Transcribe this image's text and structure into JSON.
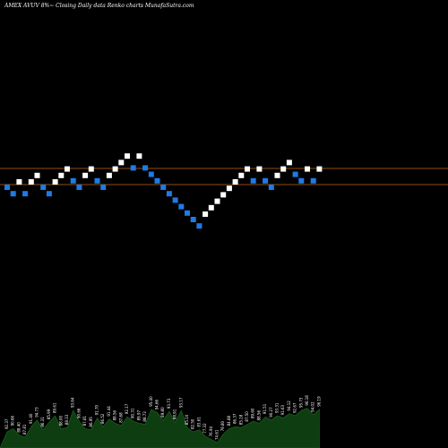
{
  "title": "AMEX  AVUV 8%~  Closing Daily data  Renko  charts MunafaSutra.com",
  "colors": {
    "background": "#000000",
    "up_brick": "#ffffff",
    "down_brick": "#1e7be6",
    "reference_line": "#c06a10",
    "volume_fill": "#0f3d12",
    "volume_edge": "#1a6b1e"
  },
  "chart_data": {
    "type": "renko",
    "title": "AMEX  AVUV 8%~  Closing Daily data  Renko  charts MunafaSutra.com",
    "grid": false,
    "reference_lines": [
      {
        "level": 2.5
      },
      {
        "level": 0
      }
    ],
    "bricks": [
      {
        "dir": "down",
        "level": 0
      },
      {
        "dir": "down",
        "level": -1
      },
      {
        "dir": "up",
        "level": 0
      },
      {
        "dir": "down",
        "level": -1
      },
      {
        "dir": "up",
        "level": 0
      },
      {
        "dir": "up",
        "level": 1
      },
      {
        "dir": "down",
        "level": 0
      },
      {
        "dir": "down",
        "level": -1
      },
      {
        "dir": "up",
        "level": 0
      },
      {
        "dir": "up",
        "level": 1
      },
      {
        "dir": "up",
        "level": 2
      },
      {
        "dir": "down",
        "level": 1
      },
      {
        "dir": "down",
        "level": 0
      },
      {
        "dir": "up",
        "level": 1
      },
      {
        "dir": "up",
        "level": 2
      },
      {
        "dir": "down",
        "level": 1
      },
      {
        "dir": "down",
        "level": 0
      },
      {
        "dir": "up",
        "level": 1
      },
      {
        "dir": "up",
        "level": 2
      },
      {
        "dir": "up",
        "level": 3
      },
      {
        "dir": "up",
        "level": 4
      },
      {
        "dir": "down",
        "level": 3
      },
      {
        "dir": "up",
        "level": 4
      },
      {
        "dir": "down",
        "level": 3
      },
      {
        "dir": "down",
        "level": 2
      },
      {
        "dir": "down",
        "level": 1
      },
      {
        "dir": "down",
        "level": 0
      },
      {
        "dir": "down",
        "level": -1
      },
      {
        "dir": "down",
        "level": -2
      },
      {
        "dir": "down",
        "level": -3
      },
      {
        "dir": "down",
        "level": -4
      },
      {
        "dir": "down",
        "level": -5
      },
      {
        "dir": "down",
        "level": -6
      },
      {
        "dir": "up",
        "level": -5
      },
      {
        "dir": "up",
        "level": -4
      },
      {
        "dir": "up",
        "level": -3
      },
      {
        "dir": "up",
        "level": -2
      },
      {
        "dir": "up",
        "level": -1
      },
      {
        "dir": "up",
        "level": 0
      },
      {
        "dir": "up",
        "level": 1
      },
      {
        "dir": "up",
        "level": 2
      },
      {
        "dir": "down",
        "level": 1
      },
      {
        "dir": "up",
        "level": 2
      },
      {
        "dir": "down",
        "level": 1
      },
      {
        "dir": "down",
        "level": 0
      },
      {
        "dir": "up",
        "level": 1
      },
      {
        "dir": "up",
        "level": 2
      },
      {
        "dir": "up",
        "level": 3
      },
      {
        "dir": "down",
        "level": 2
      },
      {
        "dir": "down",
        "level": 1
      },
      {
        "dir": "up",
        "level": 2
      },
      {
        "dir": "down",
        "level": 1
      },
      {
        "dir": "up",
        "level": 2
      }
    ],
    "volume_labels": [
      "92.37",
      "90.66",
      "88.40",
      "87.81",
      "91.40",
      "94.73",
      "86.31",
      "85.99",
      "89.61",
      "88.00",
      "88.33",
      "93.64",
      "90.66",
      "87.81",
      "86.95",
      "91.70",
      "86.52",
      "91.44",
      "88.56",
      "87.68",
      "92.17",
      "90.31",
      "89.97",
      "88.73",
      "95.40",
      "94.66",
      "89.80",
      "93.73",
      "88.91",
      "93.17",
      "85.10",
      "82.50",
      "83.61",
      "77.32",
      "76.94",
      "74.61",
      "79.80",
      "84.88",
      "86.37",
      "85.18",
      "87.50",
      "89.60",
      "88.56",
      "91.51",
      "90.27",
      "93.31",
      "91.63",
      "94.12",
      "92.67",
      "95.73",
      "96.18",
      "94.02",
      "96.19"
    ],
    "volume_values": [
      0.3,
      0.36,
      0.24,
      0.2,
      0.4,
      0.52,
      0.34,
      0.48,
      0.6,
      0.36,
      0.38,
      0.7,
      0.5,
      0.36,
      0.34,
      0.56,
      0.4,
      0.54,
      0.46,
      0.42,
      0.58,
      0.5,
      0.46,
      0.44,
      0.72,
      0.66,
      0.52,
      0.68,
      0.48,
      0.7,
      0.38,
      0.3,
      0.34,
      0.22,
      0.16,
      0.1,
      0.26,
      0.36,
      0.4,
      0.38,
      0.44,
      0.5,
      0.46,
      0.58,
      0.52,
      0.6,
      0.56,
      0.64,
      0.6,
      0.7,
      0.74,
      0.62,
      0.72
    ]
  }
}
